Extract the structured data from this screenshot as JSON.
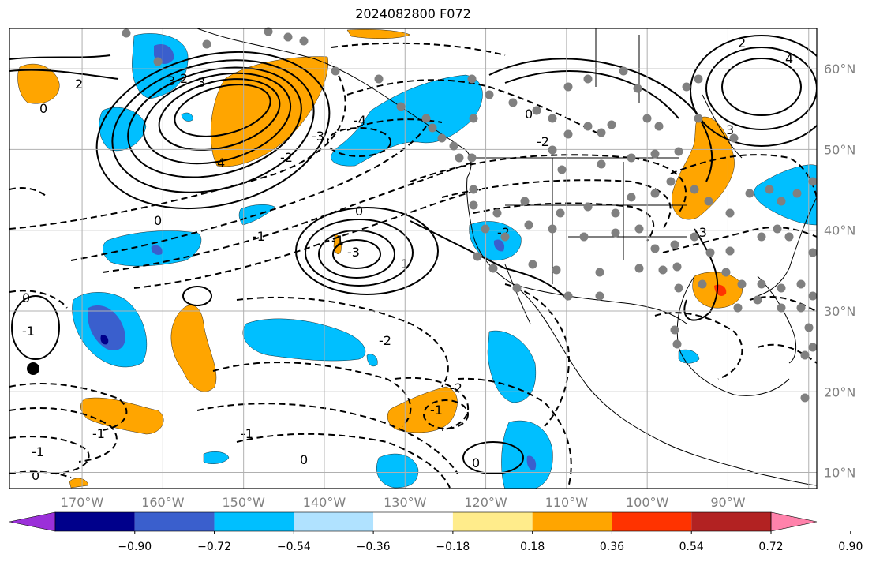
{
  "title": "2024082800 F072",
  "map": {
    "lon_range": [
      -179,
      -79
    ],
    "lat_range": [
      8,
      65
    ],
    "lon_ticks": [
      "170°W",
      "160°W",
      "150°W",
      "140°W",
      "130°W",
      "120°W",
      "110°W",
      "100°W",
      "90°W"
    ],
    "lat_ticks": [
      "60°N",
      "50°N",
      "40°N",
      "30°N",
      "20°N",
      "10°N"
    ],
    "grid": true,
    "contour_labels": [
      "0",
      "2",
      "3",
      "4",
      "0",
      "-1",
      "-2",
      "-3",
      "-4",
      "-3",
      "-2",
      "-1",
      "0",
      "-1",
      "0",
      "-1",
      "-2",
      "-1",
      "0",
      "1",
      "2",
      "3",
      "-1",
      "0",
      "-2",
      "0",
      "-1",
      "-2",
      "-3",
      "0",
      "2",
      "3",
      "4"
    ],
    "colors": {
      "blue": "#00bfff",
      "mid_blue": "#3a5fcd",
      "dark_blue": "#00008b",
      "orange": "#ffa500",
      "red_orange": "#ff3300",
      "dot": "#808080"
    }
  },
  "colorbar": {
    "labels": [
      "−0.90",
      "−0.72",
      "−0.54",
      "−0.36",
      "−0.18",
      "0.18",
      "0.36",
      "0.54",
      "0.72",
      "0.90"
    ],
    "colors": [
      "#9b30d9",
      "#00008b",
      "#3a5fcd",
      "#00bfff",
      "#b0e2ff",
      "#ffffff",
      "#ffec8b",
      "#ffa500",
      "#ff3300",
      "#b22222",
      "#ff82ab"
    ]
  }
}
